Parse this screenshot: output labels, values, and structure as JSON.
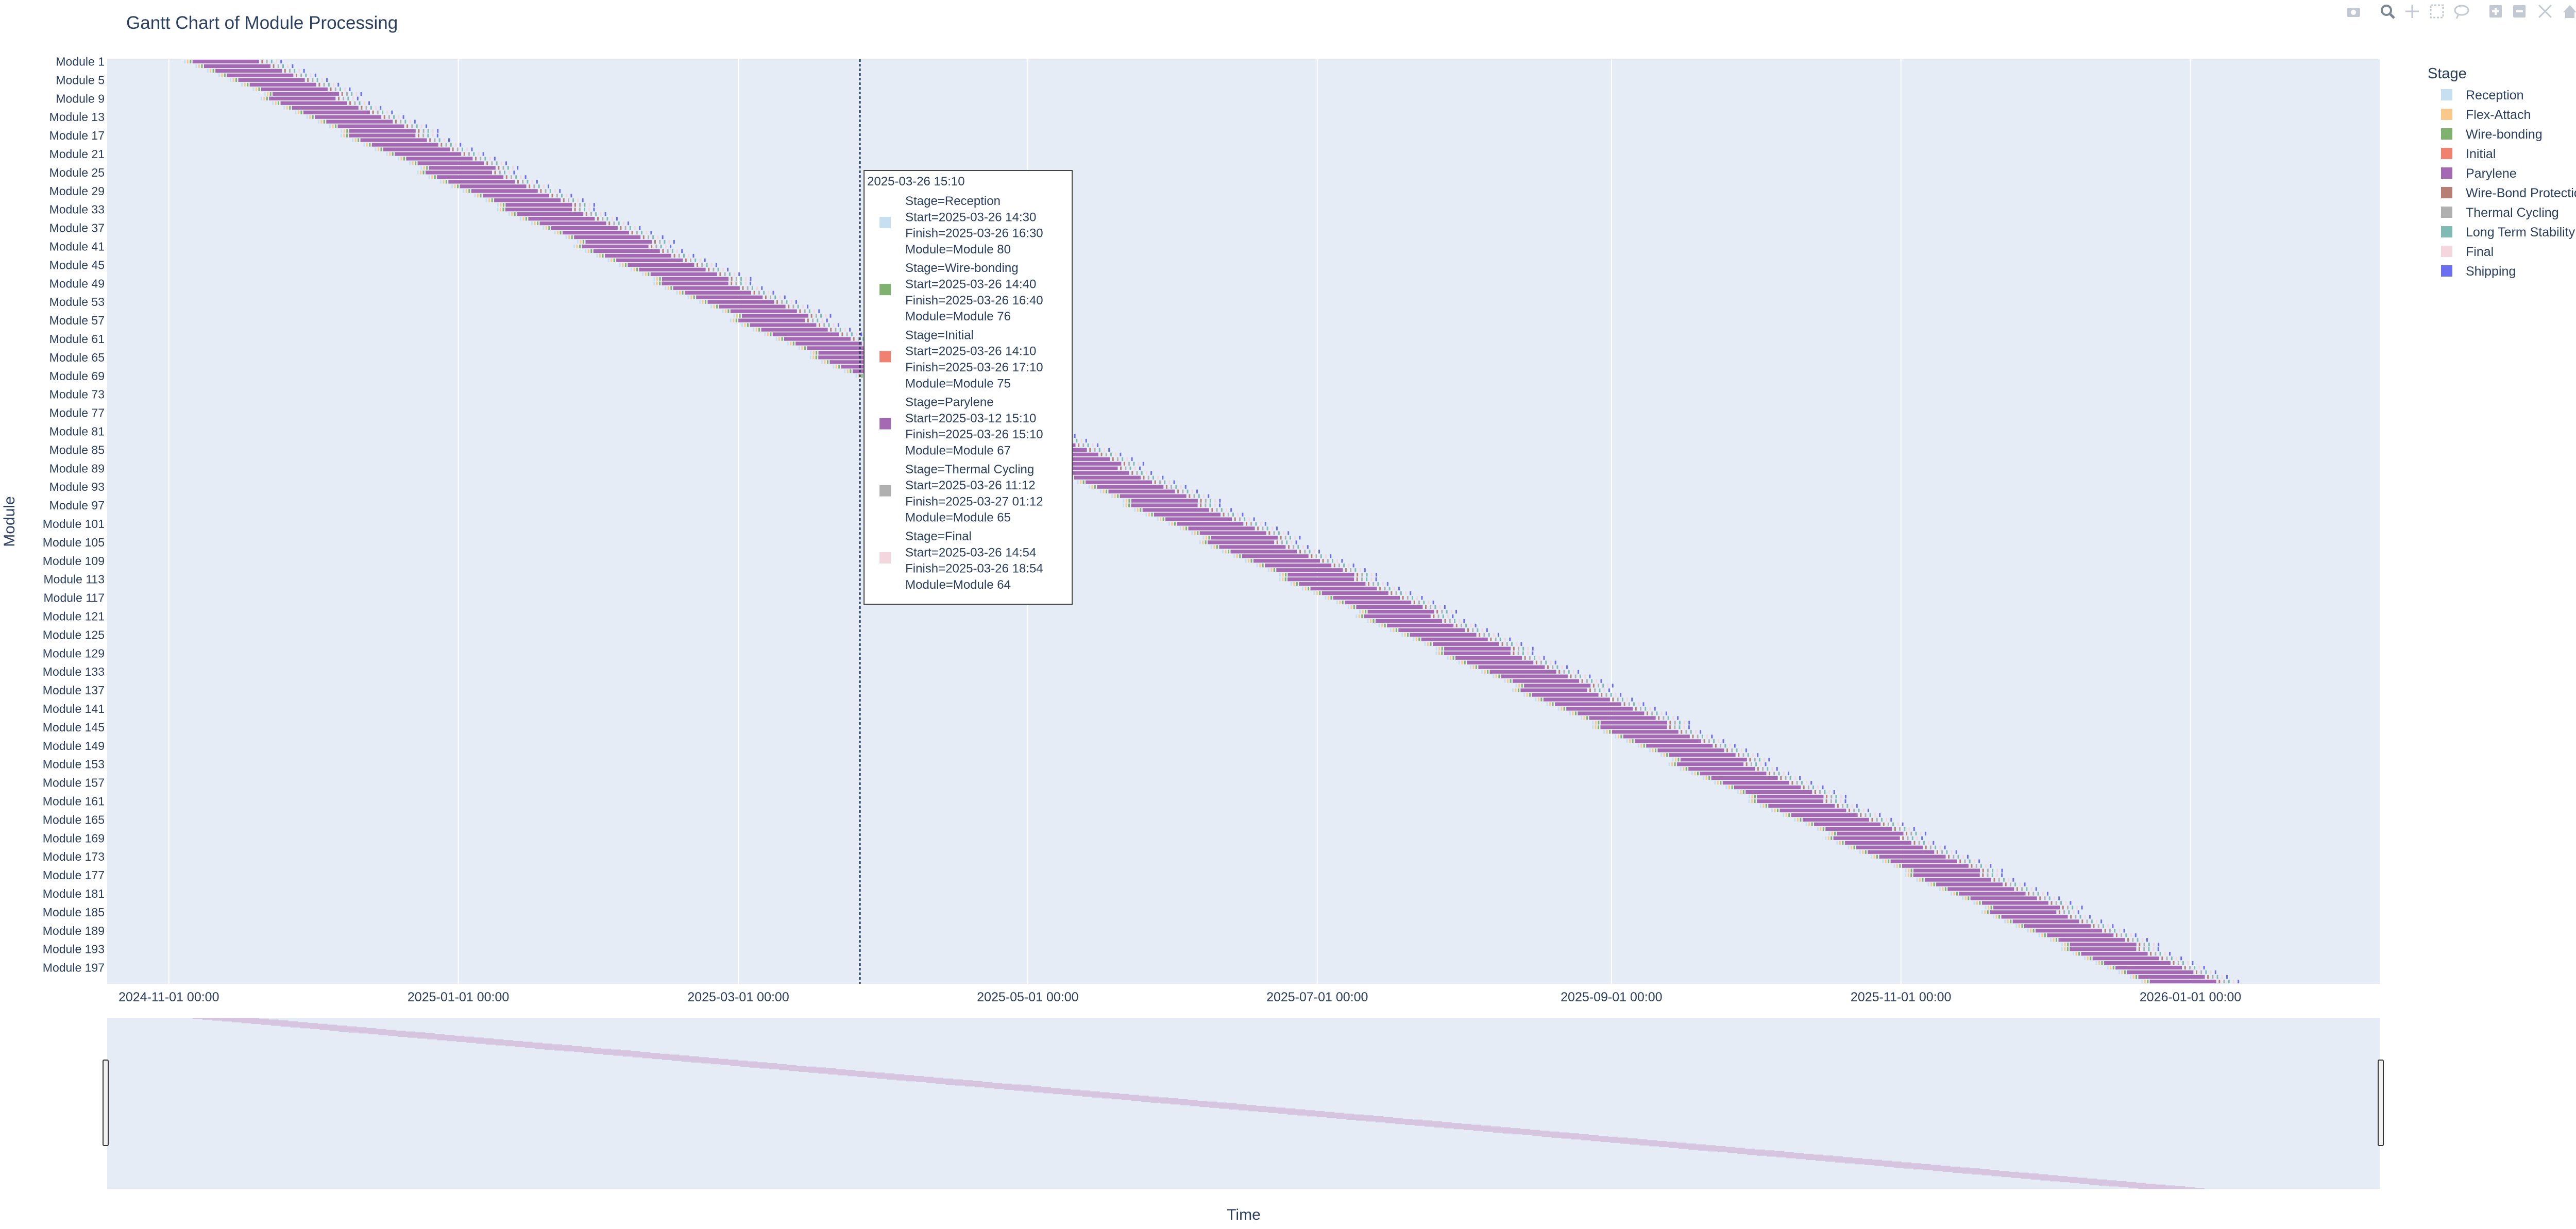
{
  "chart_data": {
    "type": "gantt",
    "title": "Gantt Chart of Module Processing",
    "xlabel": "Time",
    "ylabel": "Module",
    "x_ticks": [
      "2024-11-01 00:00",
      "2025-01-01 00:00",
      "2025-03-01 00:00",
      "2025-05-01 00:00",
      "2025-07-01 00:00",
      "2025-09-01 00:00",
      "2025-11-01 00:00",
      "2026-01-01 00:00"
    ],
    "xlim": [
      "2024-10-19",
      "2026-02-10"
    ],
    "y_ticks": [
      "Module 1",
      "Module 5",
      "Module 9",
      "Module 13",
      "Module 17",
      "Module 21",
      "Module 25",
      "Module 29",
      "Module 33",
      "Module 37",
      "Module 41",
      "Module 45",
      "Module 49",
      "Module 53",
      "Module 57",
      "Module 61",
      "Module 65",
      "Module 69",
      "Module 73",
      "Module 77",
      "Module 81",
      "Module 85",
      "Module 89",
      "Module 93",
      "Module 97",
      "Module 101",
      "Module 105",
      "Module 109",
      "Module 113",
      "Module 117",
      "Module 121",
      "Module 125",
      "Module 129",
      "Module 133",
      "Module 137",
      "Module 141",
      "Module 145",
      "Module 149",
      "Module 153",
      "Module 157",
      "Module 161",
      "Module 165",
      "Module 169",
      "Module 173",
      "Module 177",
      "Module 181",
      "Module 185",
      "Module 189",
      "Module 193",
      "Module 197"
    ],
    "module_count": 200,
    "stages": [
      {
        "name": "Reception",
        "color": "#c6e0f2"
      },
      {
        "name": "Flex-Attach",
        "color": "#f9c98b"
      },
      {
        "name": "Wire-bonding",
        "color": "#7fb16f"
      },
      {
        "name": "Initial",
        "color": "#f08070"
      },
      {
        "name": "Parylene",
        "color": "#a569b4"
      },
      {
        "name": "Wire-Bond Protection",
        "color": "#b77f74"
      },
      {
        "name": "Thermal Cycling",
        "color": "#b0b0b0"
      },
      {
        "name": "Long Term Stability",
        "color": "#7fbab3"
      },
      {
        "name": "Final",
        "color": "#f3d6de"
      },
      {
        "name": "Shipping",
        "color": "#6a6ef0"
      }
    ],
    "schedule": {
      "first_module_parylene_start": "2024-11-06",
      "last_module_parylene_start": "2025-12-21",
      "parylene_duration_days": 14,
      "post_stage_offsets_days": [
        14.5,
        15.5,
        16.5,
        17.5,
        18.5
      ]
    },
    "hover_line_time": "2025-03-26 15:10",
    "grid": true,
    "legend_position": "right",
    "has_range_slider": true
  },
  "tooltip": {
    "header": "2025-03-26 15:10",
    "entries": [
      {
        "stage": "Reception",
        "color": "#c6e0f2",
        "lines": [
          "Stage=Reception",
          "Start=2025-03-26 14:30",
          "Finish=2025-03-26 16:30",
          "Module=Module 80"
        ]
      },
      {
        "stage": "Wire-bonding",
        "color": "#7fb16f",
        "lines": [
          "Stage=Wire-bonding",
          "Start=2025-03-26 14:40",
          "Finish=2025-03-26 16:40",
          "Module=Module 76"
        ]
      },
      {
        "stage": "Initial",
        "color": "#f08070",
        "lines": [
          "Stage=Initial",
          "Start=2025-03-26 14:10",
          "Finish=2025-03-26 17:10",
          "Module=Module 75"
        ]
      },
      {
        "stage": "Parylene",
        "color": "#a569b4",
        "lines": [
          "Stage=Parylene",
          "Start=2025-03-12 15:10",
          "Finish=2025-03-26 15:10",
          "Module=Module 67"
        ]
      },
      {
        "stage": "Thermal Cycling",
        "color": "#b0b0b0",
        "lines": [
          "Stage=Thermal Cycling",
          "Start=2025-03-26 11:12",
          "Finish=2025-03-27 01:12",
          "Module=Module 65"
        ]
      },
      {
        "stage": "Final",
        "color": "#f3d6de",
        "lines": [
          "Stage=Final",
          "Start=2025-03-26 14:54",
          "Finish=2025-03-26 18:54",
          "Module=Module 64"
        ]
      }
    ]
  },
  "legend": {
    "title": "Stage"
  },
  "colors": {
    "plot_bg": "#e5ecf6",
    "text": "#2a3f5f",
    "grid": "#ffffff"
  },
  "modebar": {
    "icons": [
      "camera-icon",
      "zoom-icon",
      "pan-icon",
      "box-select-icon",
      "lasso-icon",
      "zoom-in-icon",
      "zoom-out-icon",
      "autoscale-icon",
      "home-icon",
      "plotly-logo-icon"
    ]
  }
}
